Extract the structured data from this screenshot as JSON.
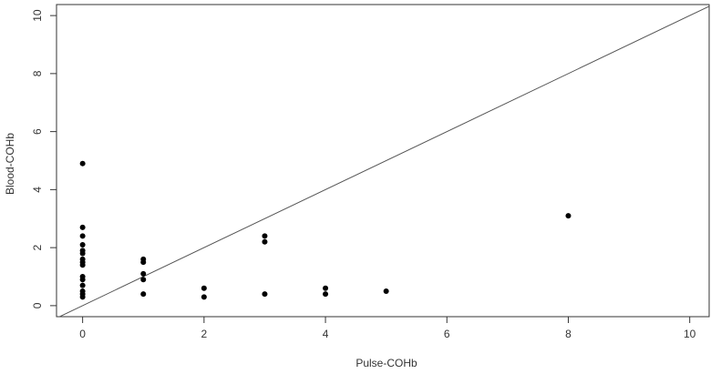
{
  "chart_data": {
    "type": "scatter",
    "x_label": "Pulse-COHb",
    "y_label": "Blood-COHb",
    "x": [
      0,
      0,
      0,
      0,
      0,
      0,
      0,
      0,
      0,
      0,
      0,
      0,
      0,
      0,
      0,
      1,
      1,
      1,
      1,
      1,
      2,
      2,
      3,
      3,
      3,
      4,
      4,
      5,
      8
    ],
    "values": [
      4.9,
      2.7,
      2.4,
      2.1,
      1.9,
      1.8,
      1.6,
      1.5,
      1.4,
      1.0,
      0.9,
      0.7,
      0.5,
      0.4,
      0.3,
      1.6,
      1.5,
      1.1,
      0.9,
      0.4,
      0.6,
      0.3,
      2.4,
      2.2,
      0.4,
      0.6,
      0.4,
      0.5,
      3.1
    ],
    "color": "#000000",
    "xlim": [
      -0.43,
      10.32
    ],
    "ylim": [
      -0.38,
      10.38
    ],
    "xticks": [
      0,
      2,
      4,
      6,
      8,
      10
    ],
    "yticks": [
      0,
      2,
      4,
      6,
      8,
      10
    ],
    "reference_line": {
      "slope": 1,
      "intercept": 0
    }
  }
}
